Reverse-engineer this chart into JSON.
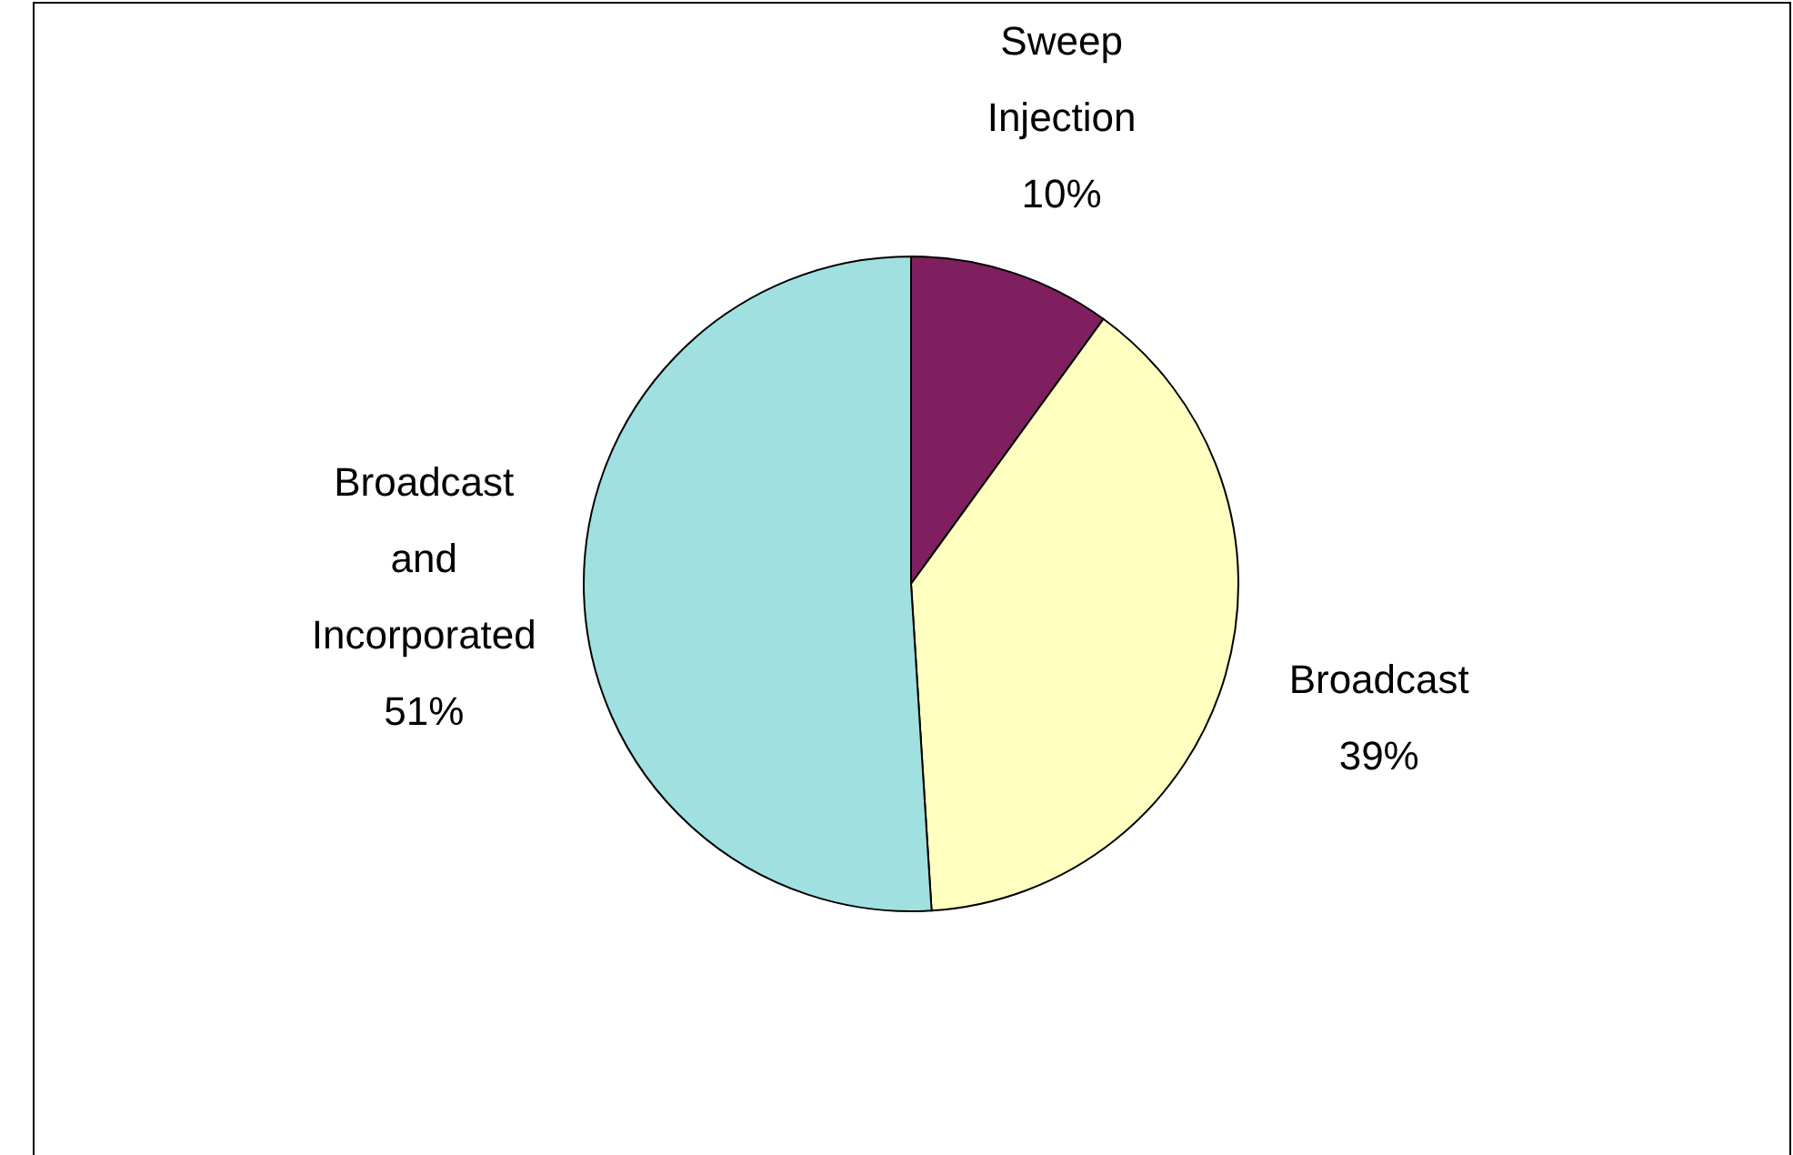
{
  "chart_data": {
    "type": "pie",
    "categories": [
      "Sweep Injection",
      "Broadcast",
      "Broadcast and Incorporated"
    ],
    "values": [
      10,
      39,
      51
    ],
    "colors": [
      "#7f1f5f",
      "#ffffc0",
      "#a0e0e0"
    ],
    "value_labels": [
      "10%",
      "39%",
      "51%"
    ]
  }
}
